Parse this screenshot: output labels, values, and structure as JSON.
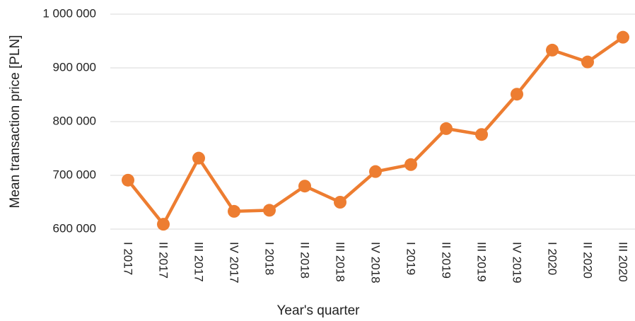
{
  "chart_data": {
    "type": "line",
    "xlabel": "Year's quarter",
    "ylabel": "Mean transaction price [PLN]",
    "categories": [
      "I 2017",
      "II 2017",
      "III 2017",
      "IV 2017",
      "I 2018",
      "II 2018",
      "III 2018",
      "IV 2018",
      "I 2019",
      "II 2019",
      "III 2019",
      "IV 2019",
      "I 2020",
      "II 2020",
      "III 2020"
    ],
    "series": [
      {
        "color": "#ed7d31",
        "values": [
          691000,
          609000,
          732000,
          633000,
          635000,
          680000,
          650000,
          707000,
          720000,
          787000,
          776000,
          851000,
          933000,
          911000,
          957000
        ]
      }
    ],
    "ylim": [
      600000,
      1000000
    ],
    "yticks": [
      {
        "value": 600000,
        "label": "600 000"
      },
      {
        "value": 700000,
        "label": "700 000"
      },
      {
        "value": 800000,
        "label": "800 000"
      },
      {
        "value": 900000,
        "label": "900 000"
      },
      {
        "value": 1000000,
        "label": "1 000 000"
      }
    ],
    "grid": true
  }
}
